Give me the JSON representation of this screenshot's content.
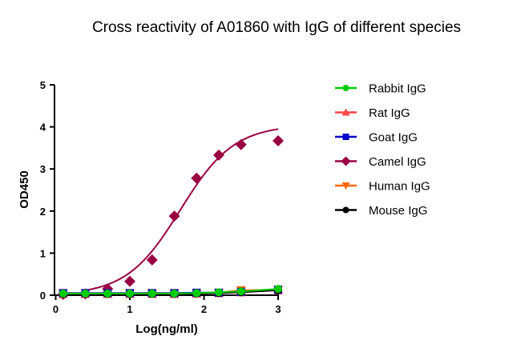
{
  "chart_data": {
    "type": "scatter",
    "title": "Cross reactivity of A01860 with IgG of different species",
    "xlabel": "Log(ng/ml)",
    "ylabel": "OD450",
    "xlim": [
      0,
      3
    ],
    "ylim": [
      0,
      5
    ],
    "xticks": [
      "0",
      "1",
      "2",
      "3"
    ],
    "yticks": [
      "0",
      "1",
      "2",
      "3",
      "4",
      "5"
    ],
    "grid": false,
    "legend": "right",
    "x": [
      0.1,
      0.4,
      0.7,
      1.0,
      1.3,
      1.6,
      1.9,
      2.2,
      2.5,
      3.0
    ],
    "series": [
      {
        "name": "Rabbit IgG",
        "color": "#00cc00",
        "marker": "circle",
        "values": [
          0.04,
          0.04,
          0.04,
          0.04,
          0.04,
          0.04,
          0.05,
          0.07,
          0.09,
          0.15
        ]
      },
      {
        "name": "Rat IgG",
        "color": "#ff4444",
        "marker": "triangle-up",
        "values": [
          0.03,
          0.03,
          0.03,
          0.03,
          0.03,
          0.03,
          0.04,
          0.05,
          0.07,
          0.12
        ]
      },
      {
        "name": "Goat IgG",
        "color": "#0000cc",
        "marker": "square",
        "values": [
          0.05,
          0.05,
          0.05,
          0.05,
          0.05,
          0.05,
          0.06,
          0.06,
          0.08,
          0.13
        ]
      },
      {
        "name": "Camel IgG",
        "color": "#990044",
        "marker": "diamond",
        "values": [
          0.02,
          0.03,
          0.15,
          0.33,
          0.84,
          1.88,
          2.78,
          3.33,
          3.58,
          3.67
        ],
        "fit": {
          "bottom": 0.0,
          "top": 4.05,
          "logEC50": 1.68,
          "hill": 1.2
        }
      },
      {
        "name": "Human IgG",
        "color": "#ff6600",
        "marker": "triangle-down",
        "values": [
          0.05,
          0.05,
          0.05,
          0.05,
          0.05,
          0.05,
          0.05,
          0.06,
          0.12,
          0.13
        ]
      },
      {
        "name": "Mouse IgG",
        "color": "#000000",
        "marker": "circle",
        "values": [
          0.03,
          0.03,
          0.03,
          0.03,
          0.03,
          0.03,
          0.04,
          0.05,
          0.07,
          0.12
        ]
      }
    ]
  }
}
